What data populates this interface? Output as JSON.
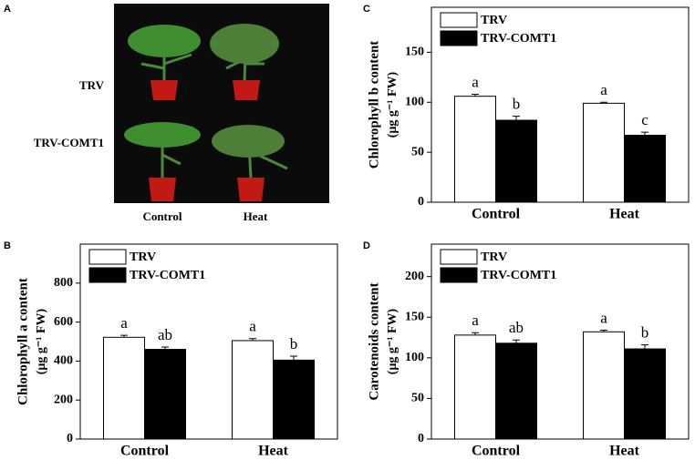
{
  "photo": {
    "panel": "A",
    "rows": [
      "TRV",
      "TRV-COMT1"
    ],
    "columns": [
      "Control",
      "Heat"
    ]
  },
  "chart_data": [
    {
      "type": "bar",
      "panel": "B",
      "ylabel": "Chlorophyll a content",
      "ylabel_unit": "(μg g⁻¹ FW)",
      "categories": [
        "Control",
        "Heat"
      ],
      "ylim": [
        0,
        1000
      ],
      "yticks": [
        0,
        200,
        400,
        600,
        800
      ],
      "series": [
        {
          "name": "TRV",
          "color": "#ffffff",
          "values": [
            522,
            505
          ],
          "errors": [
            10,
            10
          ],
          "letters": [
            "a",
            "a"
          ]
        },
        {
          "name": "TRV-COMT1",
          "color": "#000000",
          "values": [
            460,
            405
          ],
          "errors": [
            12,
            20
          ],
          "letters": [
            "ab",
            "b"
          ]
        }
      ]
    },
    {
      "type": "bar",
      "panel": "C",
      "ylabel": "Chlorophyll b content",
      "ylabel_unit": "(μg g⁻¹ FW)",
      "categories": [
        "Control",
        "Heat"
      ],
      "ylim": [
        0,
        195
      ],
      "yticks": [
        0,
        50,
        100,
        150
      ],
      "series": [
        {
          "name": "TRV",
          "color": "#ffffff",
          "values": [
            106,
            99
          ],
          "errors": [
            2,
            1
          ],
          "letters": [
            "a",
            "a"
          ]
        },
        {
          "name": "TRV-COMT1",
          "color": "#000000",
          "values": [
            82,
            67
          ],
          "errors": [
            4,
            3
          ],
          "letters": [
            "b",
            "c"
          ]
        }
      ]
    },
    {
      "type": "bar",
      "panel": "D",
      "ylabel": "Carotenoids content",
      "ylabel_unit": "(μg g⁻¹ FW)",
      "categories": [
        "Control",
        "Heat"
      ],
      "ylim": [
        0,
        240
      ],
      "yticks": [
        0,
        50,
        100,
        150,
        200
      ],
      "series": [
        {
          "name": "TRV",
          "color": "#ffffff",
          "values": [
            128,
            132
          ],
          "errors": [
            3,
            2
          ],
          "letters": [
            "a",
            "a"
          ]
        },
        {
          "name": "TRV-COMT1",
          "color": "#000000",
          "values": [
            118,
            111
          ],
          "errors": [
            4,
            5
          ],
          "letters": [
            "ab",
            "b"
          ]
        }
      ]
    }
  ]
}
